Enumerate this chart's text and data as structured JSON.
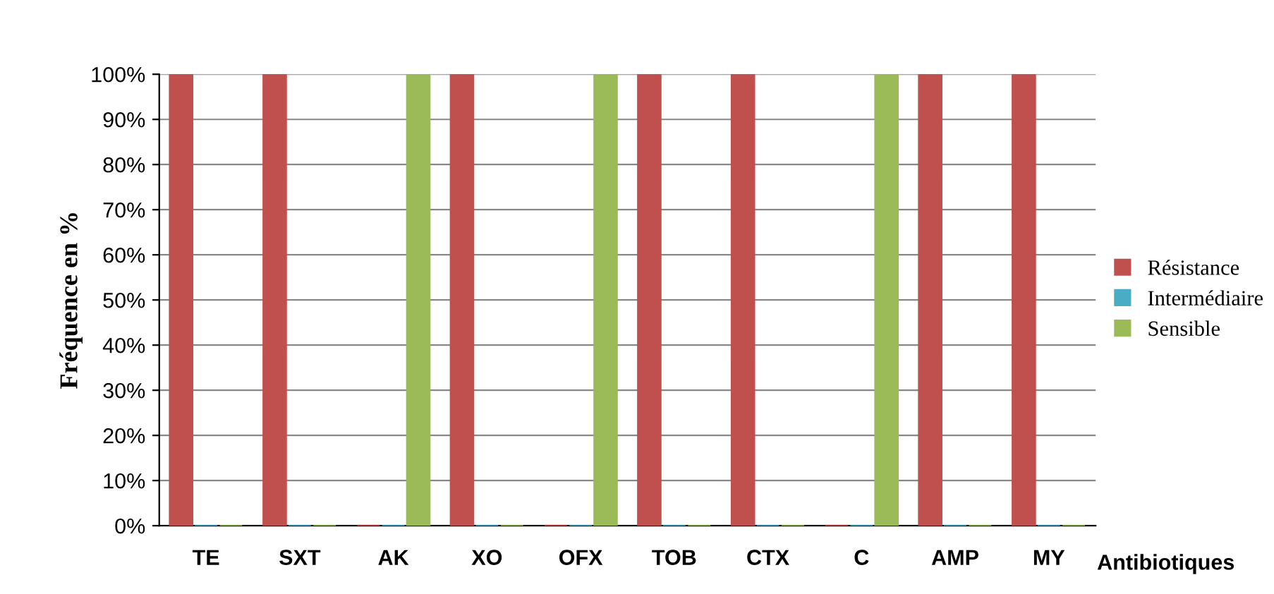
{
  "chart_data": {
    "type": "bar",
    "ylabel": "Fréquence en %",
    "xlabel": "Antibiotiques",
    "categories": [
      "TE",
      "SXT",
      "AK",
      "XO",
      "OFX",
      "TOB",
      "CTX",
      "C",
      "AMP",
      "MY"
    ],
    "series": [
      {
        "name": "Résistance",
        "color": "#c0504d",
        "values": [
          100,
          100,
          0,
          100,
          0,
          100,
          100,
          0,
          100,
          100
        ]
      },
      {
        "name": "Intermédiaire",
        "color": "#4bacc6",
        "values": [
          0,
          0,
          0,
          0,
          0,
          0,
          0,
          0,
          0,
          0
        ]
      },
      {
        "name": "Sensible",
        "color": "#9bbb59",
        "values": [
          0,
          0,
          100,
          0,
          100,
          0,
          0,
          100,
          0,
          0
        ]
      }
    ],
    "ylim": [
      0,
      100
    ],
    "yticks": [
      {
        "value": 0,
        "label": "0%"
      },
      {
        "value": 10,
        "label": "10%"
      },
      {
        "value": 20,
        "label": "20%"
      },
      {
        "value": 30,
        "label": "30%"
      },
      {
        "value": 40,
        "label": "40%"
      },
      {
        "value": 50,
        "label": "50%"
      },
      {
        "value": 60,
        "label": "60%"
      },
      {
        "value": 70,
        "label": "70%"
      },
      {
        "value": 80,
        "label": "80%"
      },
      {
        "value": 90,
        "label": "90%"
      },
      {
        "value": 100,
        "label": "100%"
      }
    ],
    "grid": "y",
    "legend": "right"
  }
}
